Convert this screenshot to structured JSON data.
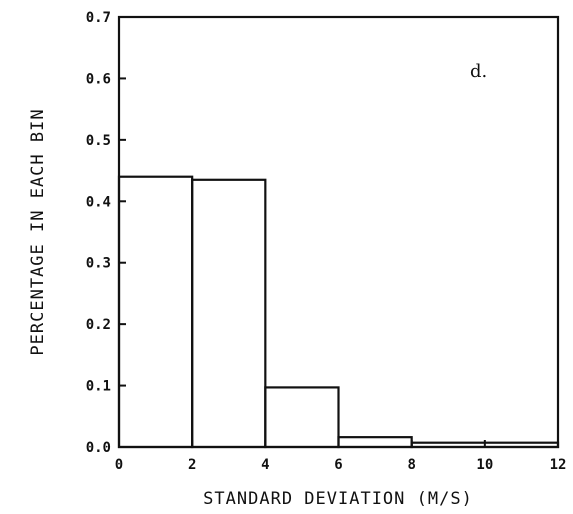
{
  "chart_data": {
    "type": "bar",
    "xlabel": "STANDARD DEVIATION (M/S)",
    "ylabel": "PERCENTAGE IN EACH BIN",
    "annotation": "d.",
    "xlim": [
      0,
      12
    ],
    "ylim": [
      0,
      0.7
    ],
    "x_ticks": [
      "0",
      "2",
      "4",
      "6",
      "8",
      "10",
      "12"
    ],
    "y_ticks": [
      "0.0",
      "0.1",
      "0.2",
      "0.3",
      "0.4",
      "0.5",
      "0.6",
      "0.7"
    ],
    "bins": [
      {
        "range": [
          0,
          2
        ],
        "value": 0.44
      },
      {
        "range": [
          2,
          4
        ],
        "value": 0.435
      },
      {
        "range": [
          4,
          6
        ],
        "value": 0.097
      },
      {
        "range": [
          6,
          8
        ],
        "value": 0.016
      },
      {
        "range": [
          8,
          12
        ],
        "value": 0.007
      }
    ],
    "grid": false,
    "legend": "none"
  }
}
